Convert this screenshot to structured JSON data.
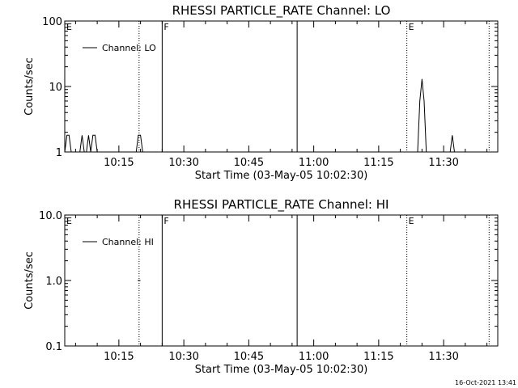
{
  "chart_data": [
    {
      "type": "line",
      "title": "RHESSI PARTICLE_RATE Channel: LO",
      "xlabel": "Start Time (03-May-05 10:02:30)",
      "ylabel": "Counts/sec",
      "yscale": "log",
      "ylim": [
        1,
        100
      ],
      "xlim": [
        "10:02:30",
        "11:42:30"
      ],
      "yticks": [
        "1",
        "10",
        "100"
      ],
      "xticks": [
        "10:15",
        "10:30",
        "10:45",
        "11:00",
        "11:15",
        "11:30"
      ],
      "legend": {
        "placement": "top-left",
        "entries": [
          "Channel: LO"
        ]
      },
      "grid": false,
      "series": [
        {
          "name": "Channel: LO",
          "x": [
            "10:02:30",
            "10:03:00",
            "10:03:30",
            "10:04:00",
            "10:04:30",
            "10:05:00",
            "10:05:30",
            "10:06:00",
            "10:06:30",
            "10:07:00",
            "10:07:30",
            "10:08:00",
            "10:08:30",
            "10:09:00",
            "10:09:30",
            "10:10:00",
            "10:11:00",
            "10:12:00",
            "10:13:00",
            "10:14:00",
            "10:15:00",
            "10:16:00",
            "10:17:00",
            "10:18:00",
            "10:19:00",
            "10:19:30",
            "10:20:00",
            "10:20:30",
            "10:21:00",
            "10:22:00",
            "10:25:00",
            "11:20:00",
            "11:22:00",
            "11:24:00",
            "11:24:30",
            "11:25:00",
            "11:25:30",
            "11:26:00",
            "11:26:30",
            "11:30:00",
            "11:31:30",
            "11:32:00",
            "11:32:30",
            "11:34:00",
            "11:36:00",
            "11:40:00",
            "11:42:30"
          ],
          "values": [
            1,
            1.8,
            1.8,
            1,
            1,
            1,
            1,
            1,
            1.8,
            1,
            1,
            1.8,
            1,
            1.8,
            1.8,
            1,
            1,
            1,
            1,
            1,
            1,
            1,
            1,
            1,
            1,
            1.8,
            1.8,
            1,
            1,
            1,
            1,
            1,
            1,
            1,
            6,
            13,
            6,
            1,
            1,
            1,
            1,
            1.8,
            1,
            1,
            1,
            1,
            1
          ]
        }
      ],
      "annotations": [
        {
          "time": "10:02:30",
          "text": "E"
        },
        {
          "time": "10:25:00",
          "text": "F"
        },
        {
          "time": "11:21:30",
          "text": "E"
        }
      ],
      "vlines": [
        {
          "time": "10:19:40",
          "style": "dotted"
        },
        {
          "time": "10:25:00",
          "style": "solid"
        },
        {
          "time": "10:56:10",
          "style": "solid"
        },
        {
          "time": "11:21:30",
          "style": "dotted"
        },
        {
          "time": "11:40:30",
          "style": "dotted"
        }
      ]
    },
    {
      "type": "line",
      "title": "RHESSI PARTICLE_RATE Channel: HI",
      "xlabel": "Start Time (03-May-05 10:02:30)",
      "ylabel": "Counts/sec",
      "yscale": "log",
      "ylim": [
        0.1,
        10
      ],
      "xlim": [
        "10:02:30",
        "11:42:30"
      ],
      "yticks": [
        "0.1",
        "1.0",
        "10.0"
      ],
      "xticks": [
        "10:15",
        "10:30",
        "10:45",
        "11:00",
        "11:15",
        "11:30"
      ],
      "legend": {
        "placement": "top-left",
        "entries": [
          "Channel: HI"
        ]
      },
      "grid": false,
      "series": [
        {
          "name": "Channel: HI",
          "x": [
            "10:19:20",
            "10:20:00"
          ],
          "values": [
            1,
            1
          ]
        }
      ],
      "annotations": [
        {
          "time": "10:02:30",
          "text": "E"
        },
        {
          "time": "10:25:00",
          "text": "F"
        },
        {
          "time": "11:21:30",
          "text": "E"
        }
      ],
      "vlines": [
        {
          "time": "10:19:40",
          "style": "dotted"
        },
        {
          "time": "10:25:00",
          "style": "solid"
        },
        {
          "time": "10:56:10",
          "style": "solid"
        },
        {
          "time": "11:21:30",
          "style": "dotted"
        },
        {
          "time": "11:40:30",
          "style": "dotted"
        }
      ]
    }
  ],
  "footer": {
    "timestamp": "16-Oct-2021 13:41"
  }
}
